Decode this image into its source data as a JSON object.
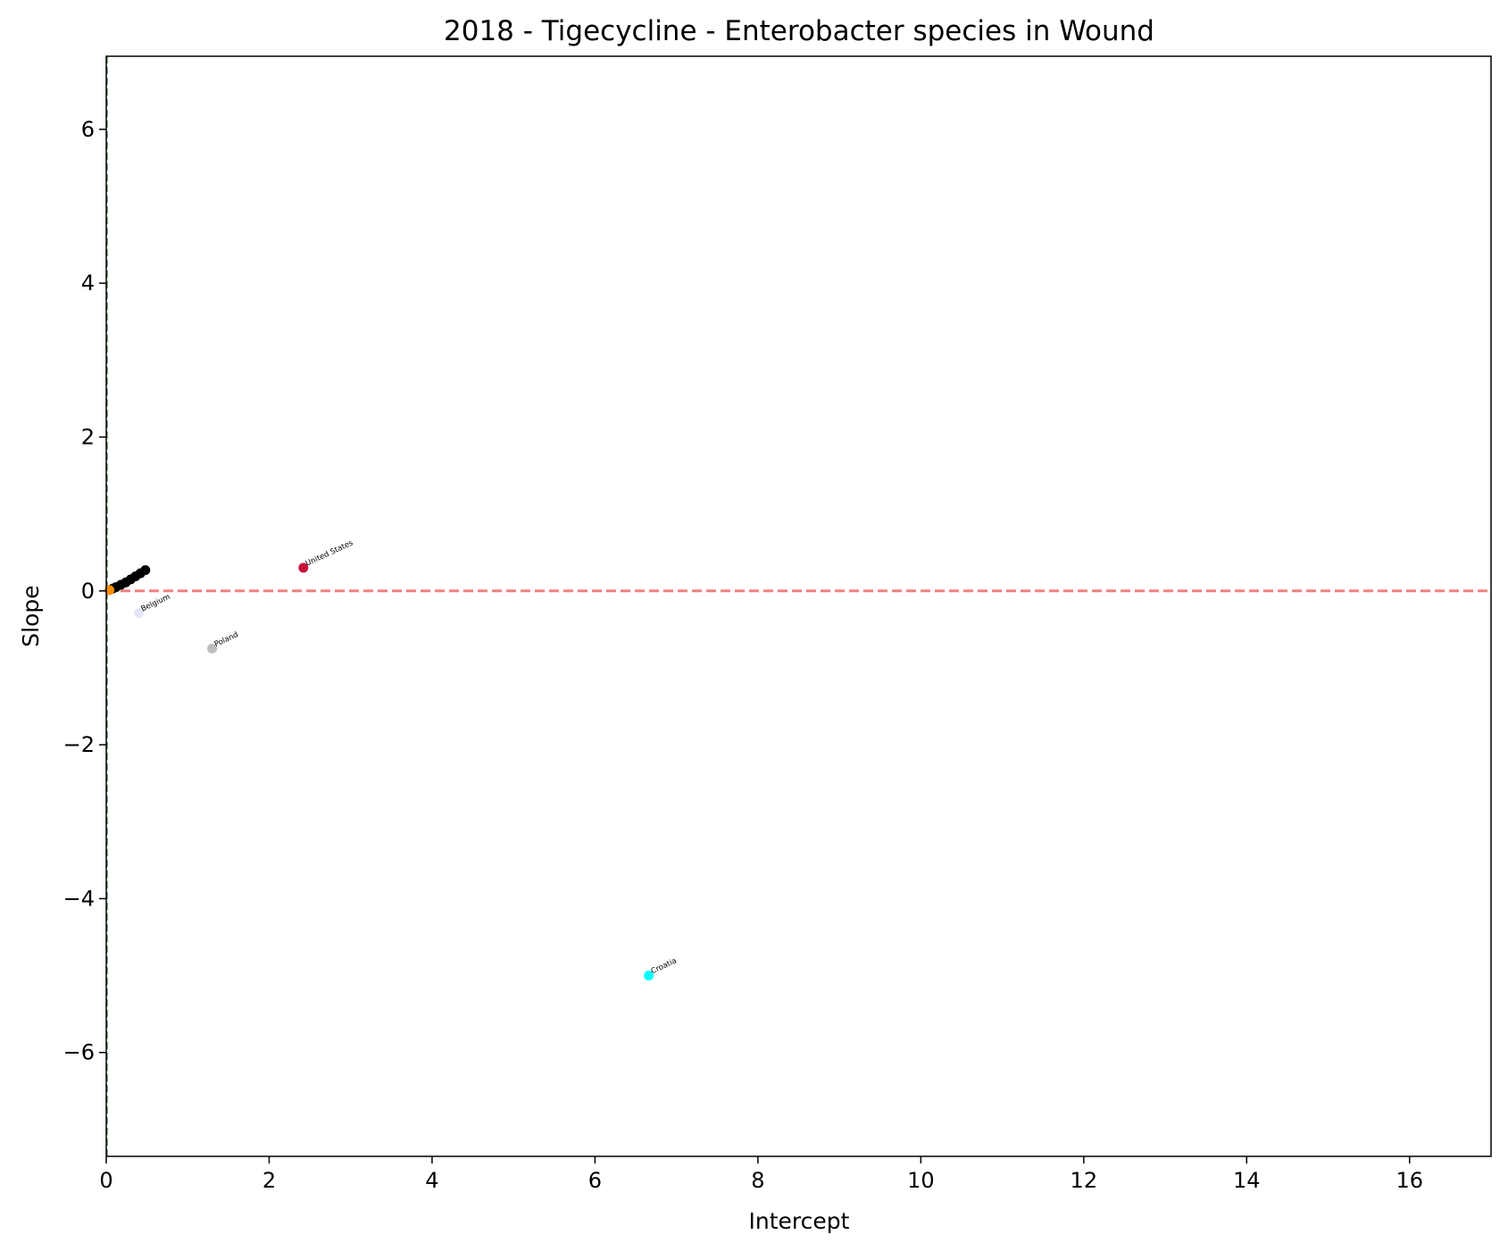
{
  "chart_data": {
    "type": "scatter",
    "title": "2018 - Tigecycline - Enterobacter species in Wound",
    "xlabel": "Intercept",
    "ylabel": "Slope",
    "xlim": [
      0,
      17
    ],
    "ylim": [
      -7.35,
      6.95
    ],
    "xticks": [
      0,
      2,
      4,
      6,
      8,
      10,
      12,
      14,
      16
    ],
    "xtick_labels": [
      "0",
      "2",
      "4",
      "6",
      "8",
      "10",
      "12",
      "14",
      "16"
    ],
    "yticks": [
      -6,
      -4,
      -2,
      0,
      2,
      4,
      6
    ],
    "ytick_labels": [
      "−6",
      "−4",
      "−2",
      "0",
      "2",
      "4",
      "6"
    ],
    "grid": false,
    "reference_lines": [
      {
        "orientation": "horizontal",
        "value": 0,
        "color": "#f08080",
        "style": "dashed"
      },
      {
        "orientation": "vertical",
        "value": 0,
        "color": "#5a8a5a",
        "style": "dashed"
      }
    ],
    "points": [
      {
        "x": 2.42,
        "y": 0.3,
        "label": "United States",
        "color": "#c8143c"
      },
      {
        "x": 0.4,
        "y": -0.29,
        "label": "Belgium",
        "color": "#e6e6fa"
      },
      {
        "x": 1.3,
        "y": -0.75,
        "label": "Poland",
        "color": "#bdbdbd"
      },
      {
        "x": 6.66,
        "y": -5.0,
        "label": "Croatia",
        "color": "#00ffff"
      },
      {
        "x": 0.08,
        "y": 0.03,
        "label": "",
        "color": "#000000"
      },
      {
        "x": 0.12,
        "y": 0.05,
        "label": "",
        "color": "#000000"
      },
      {
        "x": 0.18,
        "y": 0.08,
        "label": "",
        "color": "#000000"
      },
      {
        "x": 0.24,
        "y": 0.11,
        "label": "",
        "color": "#000000"
      },
      {
        "x": 0.3,
        "y": 0.15,
        "label": "",
        "color": "#000000"
      },
      {
        "x": 0.36,
        "y": 0.19,
        "label": "",
        "color": "#000000"
      },
      {
        "x": 0.42,
        "y": 0.23,
        "label": "",
        "color": "#000000"
      },
      {
        "x": 0.48,
        "y": 0.27,
        "label": "",
        "color": "#000000"
      },
      {
        "x": 0.04,
        "y": 0.01,
        "label": "",
        "color": "#ff8c00"
      }
    ]
  }
}
